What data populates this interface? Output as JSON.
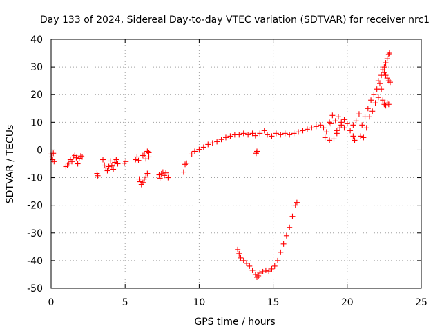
{
  "chart_data": {
    "type": "scatter",
    "title": "Day 133 of 2024, Sidereal Day-to-day VTEC variation (SDTVAR) for receiver nrc1",
    "xlabel": "GPS time / hours",
    "ylabel": "SDTVAR / TECUs",
    "xlim": [
      0,
      25
    ],
    "ylim": [
      -50,
      40
    ],
    "xticks": [
      0,
      5,
      10,
      15,
      20,
      25
    ],
    "yticks": [
      -50,
      -40,
      -30,
      -20,
      -10,
      0,
      10,
      20,
      30,
      40
    ],
    "grid": true,
    "marker": "+",
    "color": "#ff0000",
    "series": [
      {
        "name": "SDTVAR",
        "points": [
          [
            0.0,
            -1.5
          ],
          [
            0.05,
            -2.5
          ],
          [
            0.1,
            -3.5
          ],
          [
            0.15,
            -1.2
          ],
          [
            0.2,
            -4.2
          ],
          [
            1.0,
            -6.0
          ],
          [
            1.1,
            -5.5
          ],
          [
            1.2,
            -4.8
          ],
          [
            1.3,
            -3.5
          ],
          [
            1.4,
            -4.2
          ],
          [
            1.5,
            -2.5
          ],
          [
            1.6,
            -2.0
          ],
          [
            1.7,
            -2.8
          ],
          [
            1.8,
            -5.0
          ],
          [
            1.9,
            -3.0
          ],
          [
            2.0,
            -2.2
          ],
          [
            2.1,
            -2.5
          ],
          [
            3.1,
            -8.5
          ],
          [
            3.15,
            -9.3
          ],
          [
            3.5,
            -3.5
          ],
          [
            3.6,
            -5.5
          ],
          [
            3.7,
            -6.5
          ],
          [
            3.8,
            -7.5
          ],
          [
            3.9,
            -6.0
          ],
          [
            4.0,
            -4.0
          ],
          [
            4.1,
            -5.8
          ],
          [
            4.2,
            -7.0
          ],
          [
            4.3,
            -4.5
          ],
          [
            4.4,
            -3.5
          ],
          [
            4.5,
            -5.0
          ],
          [
            4.95,
            -4.8
          ],
          [
            5.05,
            -4.2
          ],
          [
            5.7,
            -3.5
          ],
          [
            5.8,
            -2.5
          ],
          [
            5.9,
            -3.8
          ],
          [
            5.95,
            -10.5
          ],
          [
            6.0,
            -11.5
          ],
          [
            6.1,
            -12.5
          ],
          [
            6.2,
            -11.8
          ],
          [
            6.3,
            -10.5
          ],
          [
            6.4,
            -9.8
          ],
          [
            6.5,
            -8.5
          ],
          [
            6.2,
            -2.0
          ],
          [
            6.3,
            -1.5
          ],
          [
            6.4,
            -3.2
          ],
          [
            6.5,
            -0.5
          ],
          [
            6.6,
            -1.0
          ],
          [
            6.6,
            -2.5
          ],
          [
            7.3,
            -9.0
          ],
          [
            7.35,
            -10.2
          ],
          [
            7.45,
            -8.6
          ],
          [
            7.55,
            -8.0
          ],
          [
            7.65,
            -9.2
          ],
          [
            7.75,
            -8.3
          ],
          [
            7.9,
            -10.0
          ],
          [
            8.95,
            -8.0
          ],
          [
            9.05,
            -5.2
          ],
          [
            9.15,
            -4.8
          ],
          [
            9.5,
            -1.5
          ],
          [
            9.7,
            -0.5
          ],
          [
            10.0,
            0.2
          ],
          [
            10.3,
            1.0
          ],
          [
            10.6,
            2.0
          ],
          [
            10.9,
            2.5
          ],
          [
            11.2,
            3.0
          ],
          [
            11.5,
            3.8
          ],
          [
            11.8,
            4.5
          ],
          [
            12.1,
            5.0
          ],
          [
            12.4,
            5.5
          ],
          [
            12.7,
            5.5
          ],
          [
            13.0,
            6.0
          ],
          [
            13.3,
            5.5
          ],
          [
            13.6,
            6.0
          ],
          [
            13.8,
            5.2
          ],
          [
            13.85,
            -1.2
          ],
          [
            13.9,
            -0.5
          ],
          [
            14.1,
            6.0
          ],
          [
            14.4,
            7.0
          ],
          [
            14.6,
            5.5
          ],
          [
            14.9,
            5.0
          ],
          [
            15.2,
            6.0
          ],
          [
            15.5,
            5.5
          ],
          [
            15.8,
            6.0
          ],
          [
            16.1,
            5.5
          ],
          [
            16.4,
            6.0
          ],
          [
            16.7,
            6.5
          ],
          [
            17.0,
            7.0
          ],
          [
            17.3,
            7.5
          ],
          [
            17.6,
            8.0
          ],
          [
            17.9,
            8.5
          ],
          [
            18.2,
            9.0
          ],
          [
            18.4,
            8.0
          ],
          [
            18.5,
            4.5
          ],
          [
            18.8,
            3.5
          ],
          [
            19.1,
            4.0
          ],
          [
            19.3,
            6.0
          ],
          [
            19.5,
            8.0
          ],
          [
            19.6,
            10.0
          ],
          [
            19.8,
            11.0
          ],
          [
            20.0,
            9.5
          ],
          [
            20.2,
            7.0
          ],
          [
            20.4,
            5.0
          ],
          [
            20.5,
            3.5
          ],
          [
            18.8,
            10.0
          ],
          [
            19.0,
            12.5
          ],
          [
            19.2,
            10.5
          ],
          [
            19.4,
            12.0
          ],
          [
            19.6,
            9.0
          ],
          [
            19.8,
            8.0
          ],
          [
            19.3,
            7.0
          ],
          [
            18.6,
            6.5
          ],
          [
            18.9,
            9.5
          ],
          [
            20.4,
            9.0
          ],
          [
            20.6,
            10.5
          ],
          [
            20.8,
            13.0
          ],
          [
            20.9,
            5.0
          ],
          [
            21.0,
            9.0
          ],
          [
            21.1,
            4.5
          ],
          [
            21.2,
            12.0
          ],
          [
            21.4,
            15.0
          ],
          [
            21.6,
            18.0
          ],
          [
            21.8,
            20.0
          ],
          [
            22.0,
            22.0
          ],
          [
            22.1,
            25.0
          ],
          [
            22.2,
            24.0
          ],
          [
            22.3,
            27.0
          ],
          [
            22.4,
            29.0
          ],
          [
            22.5,
            30.0
          ],
          [
            22.6,
            31.5
          ],
          [
            22.7,
            33.0
          ],
          [
            22.8,
            34.5
          ],
          [
            22.85,
            35.0
          ],
          [
            21.3,
            8.0
          ],
          [
            21.5,
            12.0
          ],
          [
            21.7,
            14.0
          ],
          [
            21.9,
            17.0
          ],
          [
            22.1,
            19.0
          ],
          [
            22.3,
            22.0
          ],
          [
            22.4,
            18.0
          ],
          [
            22.5,
            16.5
          ],
          [
            22.6,
            16.0
          ],
          [
            22.7,
            17.0
          ],
          [
            22.8,
            16.5
          ],
          [
            22.5,
            28.0
          ],
          [
            22.6,
            27.0
          ],
          [
            22.7,
            26.0
          ],
          [
            22.8,
            25.0
          ],
          [
            22.9,
            24.5
          ],
          [
            12.6,
            -36.0
          ],
          [
            12.7,
            -37.5
          ],
          [
            12.8,
            -39.0
          ],
          [
            13.0,
            -40.0
          ],
          [
            13.2,
            -41.0
          ],
          [
            13.4,
            -42.0
          ],
          [
            13.6,
            -43.5
          ],
          [
            13.8,
            -45.0
          ],
          [
            13.9,
            -46.0
          ],
          [
            14.0,
            -45.5
          ],
          [
            14.1,
            -44.5
          ],
          [
            14.3,
            -44.0
          ],
          [
            14.5,
            -43.5
          ],
          [
            14.7,
            -43.8
          ],
          [
            14.9,
            -43.0
          ],
          [
            15.1,
            -42.0
          ],
          [
            15.3,
            -40.0
          ],
          [
            15.5,
            -37.0
          ],
          [
            15.7,
            -34.0
          ],
          [
            15.9,
            -31.0
          ],
          [
            16.1,
            -28.0
          ],
          [
            16.3,
            -24.0
          ],
          [
            16.5,
            -20.0
          ],
          [
            16.6,
            -19.0
          ]
        ]
      }
    ]
  }
}
